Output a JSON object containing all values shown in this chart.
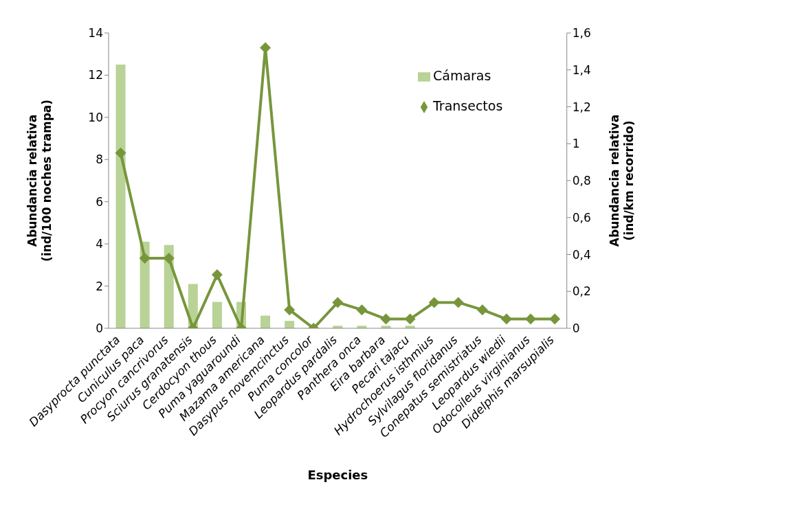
{
  "chart_data": {
    "type": "bar",
    "xlabel": "Especies",
    "ylabel": "Abundancia relativa\n(ind/100 noches trampa)",
    "y2label": "Abundancia relativa\n(ind/km recorrido)",
    "categories": [
      "Dasyprocta punctata",
      "Cuniculus paca",
      "Procyon cancrivorus",
      "Sciurus granatensis",
      "Cerdocyon thous",
      "Puma yaguaroundi",
      "Mazama americana",
      "Dasypus novemcinctus",
      "Puma concolor",
      "Leopardus pardalis",
      "Panthera onca",
      "Eira barbara",
      "Pecari tajacu",
      "Hydrochoerus isthmius",
      "Sylvilagus floridanus",
      "Conepatus semistriatus",
      "Leopardus wiedii",
      "Odocoileus virginianus",
      "Didelphis marsupialis"
    ],
    "series": [
      {
        "name": "Cámaras",
        "color": "#b9d296",
        "values": [
          12.5,
          4.1,
          3.95,
          2.1,
          1.25,
          1.25,
          0.6,
          0.35,
          0,
          0.12,
          0.12,
          0.12,
          0.12,
          0,
          0,
          0,
          0,
          0,
          0
        ]
      },
      {
        "name": "Transectos",
        "type": "line",
        "axis": "y2",
        "color": "#77963c",
        "marker": "diamond",
        "values": [
          0.95,
          0.38,
          0.38,
          0,
          0.29,
          0,
          1.52,
          0.1,
          0,
          0.14,
          0.1,
          0.05,
          0.05,
          0.14,
          0.14,
          0.1,
          0.05,
          0.05,
          0.05
        ]
      }
    ],
    "ylim": [
      0,
      14
    ],
    "yticks": [
      0,
      2,
      4,
      6,
      8,
      10,
      12,
      14
    ],
    "y2lim": [
      0,
      1.6
    ],
    "y2ticks": [
      0,
      {
        "value": 0.2,
        "label": "0,2"
      },
      {
        "value": 0.4,
        "label": "0,4"
      },
      {
        "value": 0.6,
        "label": "0,6"
      },
      {
        "value": 0.8,
        "label": "0,8"
      },
      1,
      {
        "value": 1.2,
        "label": "1,2"
      },
      {
        "value": 1.4,
        "label": "1,4"
      },
      {
        "value": 1.6,
        "label": "1,6"
      }
    ],
    "grid": false,
    "legend": "top right"
  }
}
